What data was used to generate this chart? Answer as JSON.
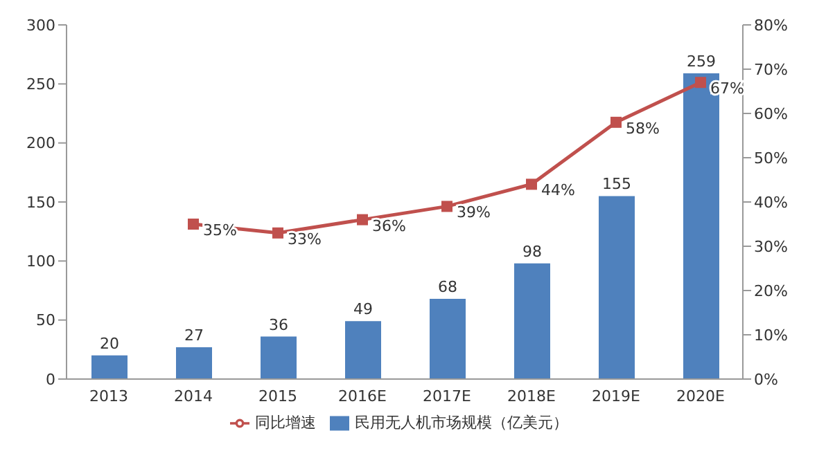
{
  "chart_data": {
    "type": "bar",
    "categories": [
      "2013",
      "2014",
      "2015",
      "2016E",
      "2017E",
      "2018E",
      "2019E",
      "2020E"
    ],
    "series": [
      {
        "name": "民用无人机市场规模（亿美元）",
        "color": "#4f81bd",
        "values": [
          20,
          27,
          36,
          49,
          68,
          98,
          155,
          259
        ],
        "value_labels": [
          "20",
          "27",
          "36",
          "49",
          "68",
          "98",
          "155",
          "259"
        ]
      },
      {
        "name": "同比增速",
        "type": "line",
        "axis": "y2",
        "color": "#c0504d",
        "marker": "square",
        "values": [
          null,
          35,
          33,
          36,
          39,
          44,
          58,
          67
        ],
        "value_labels": [
          null,
          "35%",
          "33%",
          "36%",
          "39%",
          "44%",
          "58%",
          "67%"
        ]
      }
    ],
    "ylim": [
      0,
      300
    ],
    "yticks": [
      0,
      50,
      100,
      150,
      200,
      250,
      300
    ],
    "y2lim": [
      0,
      80
    ],
    "y2ticks": [
      {
        "value": 0,
        "label": "0%"
      },
      {
        "value": 10,
        "label": "10%"
      },
      {
        "value": 20,
        "label": "20%"
      },
      {
        "value": 30,
        "label": "30%"
      },
      {
        "value": 40,
        "label": "40%"
      },
      {
        "value": 50,
        "label": "50%"
      },
      {
        "value": 60,
        "label": "60%"
      },
      {
        "value": 70,
        "label": "70%"
      },
      {
        "value": 80,
        "label": "80%"
      }
    ],
    "legend": "bottom"
  }
}
